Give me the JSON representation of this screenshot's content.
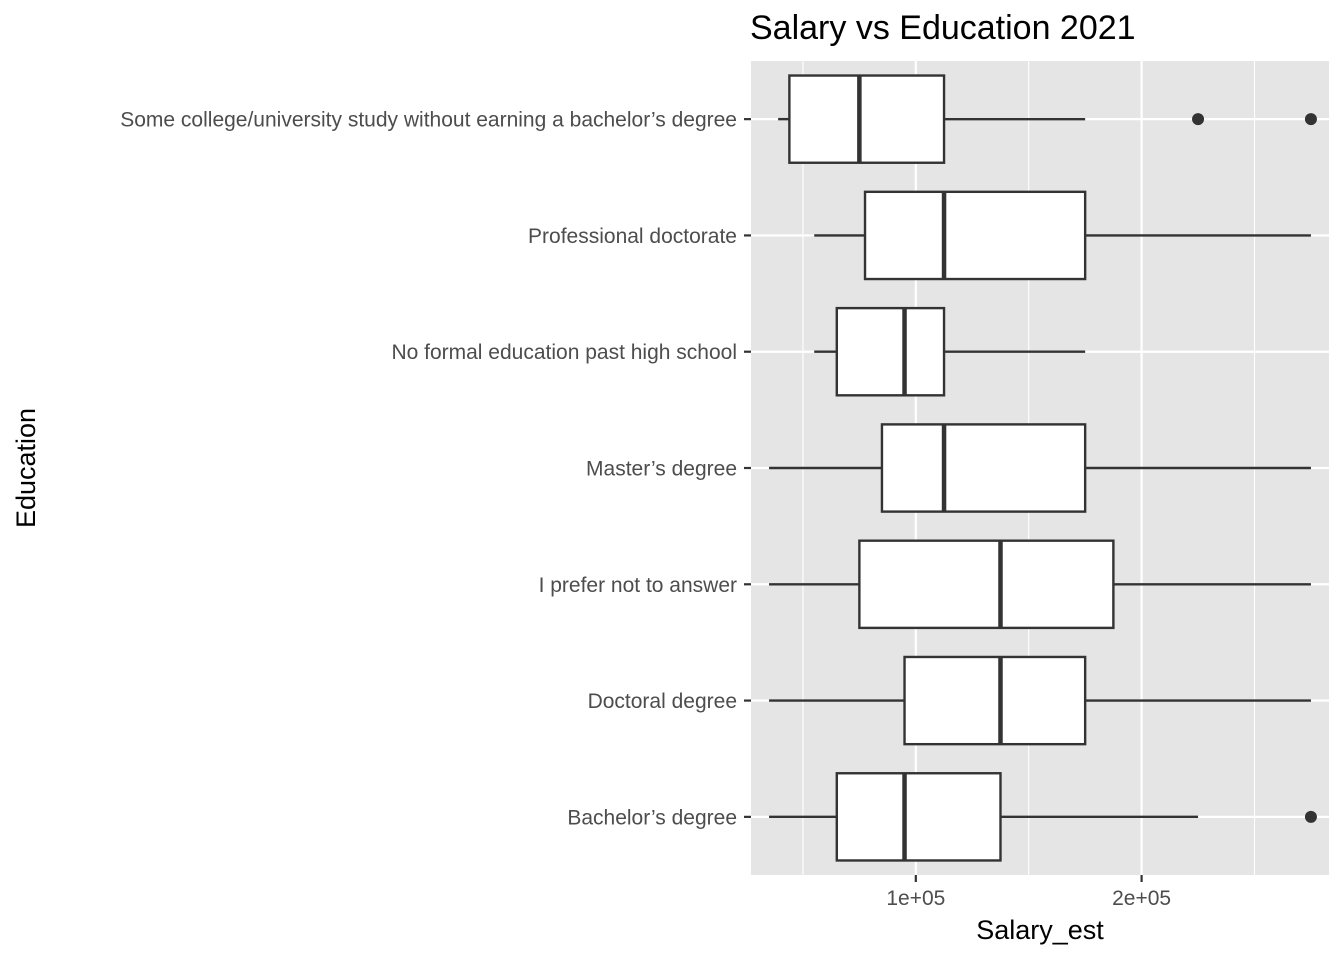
{
  "chart_data": {
    "type": "boxplot",
    "orientation": "horizontal",
    "title": "Salary vs Education 2021",
    "xlabel": "Salary_est",
    "ylabel": "Education",
    "xlim": [
      27000,
      283000
    ],
    "x_ticks": [
      {
        "value": 100000,
        "label": "1e+05"
      },
      {
        "value": 200000,
        "label": "2e+05"
      }
    ],
    "x_minor_ticks": [
      50000,
      150000,
      250000
    ],
    "grid": true,
    "colors": {
      "panel_background": "#e5e5e5",
      "grid_line": "#ffffff",
      "box_fill": "#ffffff",
      "box_stroke": "#333333",
      "outlier": "#333333"
    },
    "categories": [
      "Some college/university study without earning a bachelor’s degree",
      "Professional doctorate",
      "No formal education past high school",
      "Master’s degree",
      "I prefer not to answer",
      "Doctoral degree",
      "Bachelor’s degree"
    ],
    "boxes": [
      {
        "category": "Some college/university study without earning a bachelor’s degree",
        "whisker_low": 39000,
        "q1": 44000,
        "median": 75000,
        "q3": 112500,
        "whisker_high": 175000,
        "outliers": [
          225000,
          275000
        ]
      },
      {
        "category": "Professional doctorate",
        "whisker_low": 55000,
        "q1": 77500,
        "median": 112500,
        "q3": 175000,
        "whisker_high": 275000,
        "outliers": []
      },
      {
        "category": "No formal education past high school",
        "whisker_low": 55000,
        "q1": 65000,
        "median": 95000,
        "q3": 112500,
        "whisker_high": 175000,
        "outliers": []
      },
      {
        "category": "Master’s degree",
        "whisker_low": 35000,
        "q1": 85000,
        "median": 112500,
        "q3": 175000,
        "whisker_high": 275000,
        "outliers": []
      },
      {
        "category": "I prefer not to answer",
        "whisker_low": 35000,
        "q1": 75000,
        "median": 137500,
        "q3": 187500,
        "whisker_high": 275000,
        "outliers": []
      },
      {
        "category": "Doctoral degree",
        "whisker_low": 35000,
        "q1": 95000,
        "median": 137500,
        "q3": 175000,
        "whisker_high": 275000,
        "outliers": []
      },
      {
        "category": "Bachelor’s degree",
        "whisker_low": 35000,
        "q1": 65000,
        "median": 95000,
        "q3": 137500,
        "whisker_high": 225000,
        "outliers": [
          275000
        ]
      }
    ]
  }
}
